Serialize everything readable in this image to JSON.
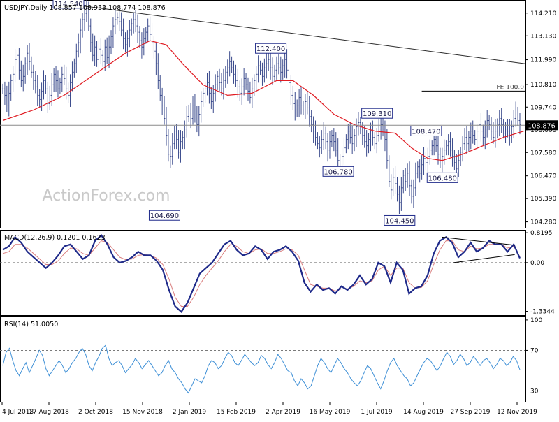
{
  "header": {
    "symbol_line": "USDJPY,Daily  108.857 108.933 108.774 108.876",
    "watermark": "ActionForex.com"
  },
  "colors": {
    "price": "#3a4a8c",
    "sma": "#e01b22",
    "trendline": "#2b2b2b",
    "macd": "#1f2a8a",
    "signal": "#d97b7b",
    "rsi": "#3d8fd6",
    "grid": "#7a7a7a",
    "label_border": "#1f2a8a"
  },
  "chart_data": [
    {
      "type": "candlestick",
      "panel": "price",
      "title": "USDJPY,Daily",
      "ohlc_last": {
        "open": 108.857,
        "high": 108.933,
        "low": 108.774,
        "close": 108.876
      },
      "ylim": [
        104.0,
        114.8
      ],
      "y_ticks": [
        114.21,
        113.13,
        111.99,
        110.81,
        109.74,
        108.66,
        107.58,
        106.47,
        105.39,
        104.28
      ],
      "y_tick_labels": [
        "114.210",
        "113.130",
        "111.990",
        "110.810",
        "109.740",
        "108.660",
        "107.580",
        "106.470",
        "105.390",
        "104.280"
      ],
      "x_tick_labels": [
        "4 Jul 2018",
        "17 Aug 2018",
        "2 Oct 2018",
        "15 Nov 2018",
        "2 Jan 2019",
        "15 Feb 2019",
        "2 Apr 2019",
        "16 May 2019",
        "1 Jul 2019",
        "14 Aug 2019",
        "27 Sep 2019",
        "12 Nov 2019"
      ],
      "closes": [
        110.6,
        110.3,
        109.8,
        110.4,
        111.0,
        111.3,
        112.0,
        112.2,
        111.5,
        111.0,
        111.2,
        111.8,
        112.3,
        111.9,
        111.4,
        111.0,
        110.7,
        110.3,
        110.1,
        110.5,
        111.0,
        110.6,
        109.9,
        110.3,
        110.8,
        111.3,
        111.0,
        110.6,
        110.9,
        111.3,
        111.1,
        110.6,
        110.3,
        110.9,
        111.4,
        111.8,
        112.4,
        112.8,
        113.4,
        113.9,
        114.2,
        114.5,
        113.6,
        112.8,
        112.2,
        112.6,
        112.0,
        112.5,
        112.2,
        111.9,
        112.6,
        112.1,
        112.6,
        113.1,
        113.6,
        113.9,
        114.0,
        113.8,
        113.4,
        113.0,
        112.7,
        113.0,
        113.4,
        113.7,
        113.9,
        113.6,
        113.3,
        112.9,
        112.6,
        113.0,
        113.3,
        113.6,
        113.2,
        112.8,
        112.4,
        111.8,
        111.0,
        110.3,
        109.8,
        109.2,
        108.4,
        107.5,
        107.4,
        108.0,
        108.6,
        108.2,
        107.6,
        108.1,
        108.3,
        108.7,
        109.3,
        109.6,
        109.2,
        109.8,
        109.5,
        108.9,
        109.4,
        110.0,
        110.4,
        110.6,
        110.9,
        110.4,
        110.0,
        110.4,
        110.8,
        111.2,
        110.9,
        110.6,
        111.0,
        111.4,
        111.6,
        111.9,
        111.6,
        111.3,
        111.0,
        110.7,
        110.4,
        110.7,
        111.1,
        110.8,
        110.5,
        110.2,
        110.6,
        111.0,
        111.3,
        111.7,
        111.5,
        111.2,
        111.6,
        111.8,
        112.0,
        111.6,
        111.2,
        111.5,
        111.8,
        111.6,
        111.4,
        111.7,
        112.0,
        111.5,
        110.9,
        110.3,
        109.9,
        109.6,
        109.8,
        110.2,
        109.8,
        109.6,
        110.0,
        109.7,
        109.3,
        108.9,
        108.6,
        108.3,
        108.0,
        107.8,
        108.2,
        108.5,
        108.1,
        107.7,
        108.1,
        108.4,
        108.1,
        107.7,
        107.2,
        106.9,
        107.4,
        107.8,
        108.2,
        108.6,
        108.3,
        108.0,
        108.4,
        108.8,
        109.0,
        108.7,
        108.4,
        108.1,
        107.9,
        108.2,
        108.6,
        108.3,
        108.0,
        108.4,
        108.7,
        108.9,
        108.7,
        108.2,
        107.2,
        106.2,
        105.8,
        106.4,
        106.1,
        105.6,
        105.2,
        105.9,
        106.5,
        106.2,
        106.6,
        106.0,
        105.5,
        105.9,
        106.6,
        106.9,
        106.6,
        107.0,
        107.3,
        107.1,
        107.4,
        107.7,
        107.9,
        108.2,
        107.9,
        107.5,
        107.2,
        107.4,
        107.7,
        107.9,
        108.1,
        107.7,
        107.4,
        107.1,
        106.8,
        107.2,
        107.6,
        108.0,
        108.3,
        108.0,
        108.3,
        108.6,
        108.4,
        108.2,
        108.6,
        108.9,
        108.6,
        108.3,
        108.7,
        109.1,
        108.9,
        108.6,
        108.3,
        108.6,
        108.9,
        109.2,
        108.9,
        108.5,
        108.7,
        108.6,
        108.4,
        108.8,
        109.2,
        109.5,
        109.1,
        108.9
      ],
      "sma_line": [
        {
          "i": 0,
          "v": 109.1
        },
        {
          "i": 15,
          "v": 109.6
        },
        {
          "i": 30,
          "v": 110.3
        },
        {
          "i": 45,
          "v": 111.3
        },
        {
          "i": 60,
          "v": 112.3
        },
        {
          "i": 72,
          "v": 112.9
        },
        {
          "i": 80,
          "v": 112.7
        },
        {
          "i": 88,
          "v": 111.8
        },
        {
          "i": 98,
          "v": 110.8
        },
        {
          "i": 110,
          "v": 110.3
        },
        {
          "i": 122,
          "v": 110.4
        },
        {
          "i": 134,
          "v": 111.0
        },
        {
          "i": 142,
          "v": 111.0
        },
        {
          "i": 152,
          "v": 110.3
        },
        {
          "i": 162,
          "v": 109.4
        },
        {
          "i": 172,
          "v": 108.9
        },
        {
          "i": 182,
          "v": 108.6
        },
        {
          "i": 192,
          "v": 108.5
        },
        {
          "i": 200,
          "v": 107.8
        },
        {
          "i": 208,
          "v": 107.3
        },
        {
          "i": 215,
          "v": 107.2
        },
        {
          "i": 225,
          "v": 107.5
        },
        {
          "i": 235,
          "v": 107.9
        },
        {
          "i": 245,
          "v": 108.3
        },
        {
          "i": 255,
          "v": 108.6
        }
      ],
      "trendline": {
        "from": {
          "i": 40,
          "v": 114.54
        },
        "to": {
          "i": 265,
          "v": 111.8
        }
      },
      "horizontal_lines": [
        {
          "v": 110.5,
          "i_from": 205,
          "label": "FE 100.0"
        },
        {
          "v": 108.876,
          "label": "108.876"
        }
      ],
      "annotations": [
        {
          "text": "114.540",
          "i": 40,
          "v": 114.54,
          "pos": "left"
        },
        {
          "text": "104.690",
          "i": 87,
          "v": 104.69,
          "pos": "left-below"
        },
        {
          "text": "112.400",
          "i": 139,
          "v": 112.4,
          "pos": "left"
        },
        {
          "text": "106.780",
          "i": 172,
          "v": 106.78,
          "pos": "left-below"
        },
        {
          "text": "109.310",
          "i": 191,
          "v": 109.31,
          "pos": "left"
        },
        {
          "text": "104.450",
          "i": 202,
          "v": 104.45,
          "pos": "left-below"
        },
        {
          "text": "108.470",
          "i": 215,
          "v": 108.47,
          "pos": "left"
        },
        {
          "text": "106.480",
          "i": 223,
          "v": 106.48,
          "pos": "left-below"
        }
      ]
    },
    {
      "type": "line",
      "panel": "macd",
      "title": "MACD(12,26,9) 0.1201 0.1623",
      "ylim": [
        -1.42,
        0.86
      ],
      "y_ticks": [
        0.8195,
        0.0,
        -1.3344
      ],
      "y_tick_labels": [
        "0.8195",
        "0.00",
        "-1.3344"
      ],
      "series": [
        {
          "values": [
            0.35,
            0.45,
            0.7,
            0.55,
            0.3,
            0.15,
            0.0,
            -0.15,
            0.0,
            0.2,
            0.45,
            0.5,
            0.3,
            0.1,
            0.2,
            0.6,
            0.75,
            0.5,
            0.15,
            0.0,
            0.05,
            0.15,
            0.3,
            0.2,
            0.2,
            0.05,
            -0.2,
            -0.75,
            -1.2,
            -1.35,
            -1.1,
            -0.7,
            -0.3,
            -0.15,
            0.0,
            0.25,
            0.5,
            0.6,
            0.35,
            0.2,
            0.25,
            0.45,
            0.35,
            0.1,
            0.3,
            0.35,
            0.45,
            0.3,
            0.05,
            -0.55,
            -0.8,
            -0.6,
            -0.75,
            -0.7,
            -0.85,
            -0.65,
            -0.75,
            -0.6,
            -0.35,
            -0.6,
            -0.45,
            0.0,
            -0.1,
            -0.55,
            0.0,
            -0.2,
            -0.85,
            -0.7,
            -0.65,
            -0.35,
            0.25,
            0.6,
            0.7,
            0.55,
            0.15,
            0.3,
            0.55,
            0.3,
            0.4,
            0.6,
            0.5,
            0.5,
            0.3,
            0.5,
            0.12
          ]
        },
        {
          "values": [
            0.25,
            0.3,
            0.5,
            0.5,
            0.4,
            0.25,
            0.1,
            -0.05,
            -0.05,
            0.05,
            0.25,
            0.4,
            0.38,
            0.25,
            0.2,
            0.4,
            0.6,
            0.55,
            0.35,
            0.15,
            0.08,
            0.1,
            0.2,
            0.22,
            0.2,
            0.12,
            -0.05,
            -0.45,
            -0.95,
            -1.2,
            -1.2,
            -0.95,
            -0.6,
            -0.35,
            -0.15,
            0.05,
            0.3,
            0.5,
            0.45,
            0.3,
            0.25,
            0.35,
            0.38,
            0.25,
            0.25,
            0.3,
            0.38,
            0.35,
            0.2,
            -0.2,
            -0.6,
            -0.65,
            -0.7,
            -0.7,
            -0.78,
            -0.72,
            -0.72,
            -0.65,
            -0.5,
            -0.55,
            -0.5,
            -0.2,
            -0.1,
            -0.35,
            -0.15,
            -0.15,
            -0.55,
            -0.7,
            -0.68,
            -0.5,
            -0.05,
            0.35,
            0.6,
            0.6,
            0.35,
            0.3,
            0.45,
            0.38,
            0.4,
            0.5,
            0.5,
            0.5,
            0.4,
            0.45,
            0.16
          ]
        }
      ],
      "trendlines": [
        {
          "from": {
            "t": 0.849,
            "v": 0.7
          },
          "to": {
            "t": 0.99,
            "v": 0.48
          }
        },
        {
          "from": {
            "t": 0.872,
            "v": 0.0
          },
          "to": {
            "t": 0.99,
            "v": 0.22
          }
        }
      ]
    },
    {
      "type": "line",
      "panel": "rsi",
      "title": "RSI(14) 51.0050",
      "ylim": [
        20,
        102
      ],
      "y_ticks": [
        100,
        70,
        30
      ],
      "y_tick_labels": [
        "100",
        "70",
        "30"
      ],
      "series": [
        {
          "values": [
            55,
            68,
            72,
            60,
            50,
            45,
            52,
            58,
            48,
            55,
            62,
            70,
            65,
            52,
            45,
            50,
            55,
            60,
            55,
            48,
            52,
            58,
            62,
            68,
            72,
            66,
            55,
            50,
            58,
            64,
            72,
            75,
            62,
            55,
            58,
            60,
            55,
            48,
            52,
            56,
            62,
            58,
            52,
            56,
            60,
            55,
            50,
            45,
            48,
            55,
            60,
            52,
            48,
            42,
            38,
            32,
            28,
            35,
            42,
            40,
            38,
            45,
            55,
            60,
            58,
            52,
            55,
            62,
            68,
            65,
            58,
            55,
            60,
            66,
            62,
            58,
            55,
            58,
            65,
            62,
            56,
            52,
            58,
            66,
            62,
            56,
            50,
            48,
            40,
            35,
            42,
            38,
            32,
            35,
            45,
            55,
            62,
            58,
            52,
            48,
            55,
            62,
            58,
            52,
            48,
            42,
            38,
            35,
            40,
            48,
            55,
            52,
            45,
            38,
            32,
            40,
            50,
            58,
            62,
            55,
            50,
            45,
            42,
            35,
            38,
            45,
            52,
            58,
            62,
            60,
            55,
            50,
            55,
            62,
            68,
            64,
            56,
            60,
            66,
            62,
            55,
            58,
            64,
            60,
            55,
            60,
            62,
            58,
            52,
            56,
            62,
            60,
            55,
            58,
            64,
            60,
            51
          ]
        }
      ]
    }
  ]
}
